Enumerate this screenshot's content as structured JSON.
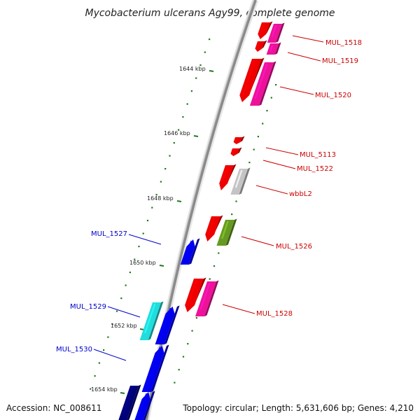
{
  "title": "Mycobacterium ulcerans Agy99, complete genome",
  "accession": "Accession: NC_008611",
  "topology": "Topology: circular; Length: 5,631,606 bp; Genes: 4,210",
  "colors": {
    "backbone": "#8a8a8a",
    "tick": "#1f7a1f",
    "forward_label": "#cc0000",
    "reverse_label": "#0000cc"
  },
  "kbp_ticks": [
    {
      "label": "1644 kbp"
    },
    {
      "label": "1646 kbp"
    },
    {
      "label": "1648 kbp"
    },
    {
      "label": "1650 kbp"
    },
    {
      "label": "1652 kbp"
    },
    {
      "label": "1654 kbp"
    }
  ],
  "labels": [
    {
      "text": "MUL_1518",
      "color": "#cc0000"
    },
    {
      "text": "MUL_1519",
      "color": "#cc0000"
    },
    {
      "text": "MUL_1520",
      "color": "#cc0000"
    },
    {
      "text": "MUL_5113",
      "color": "#cc0000"
    },
    {
      "text": "MUL_1522",
      "color": "#cc0000"
    },
    {
      "text": "wbbL2",
      "color": "#cc0000"
    },
    {
      "text": "MUL_1526",
      "color": "#cc0000"
    },
    {
      "text": "MUL_1528",
      "color": "#cc0000"
    },
    {
      "text": "MUL_1527",
      "color": "#0000cc"
    },
    {
      "text": "MUL_1529",
      "color": "#0000cc"
    },
    {
      "text": "MUL_1530",
      "color": "#0000cc"
    }
  ]
}
